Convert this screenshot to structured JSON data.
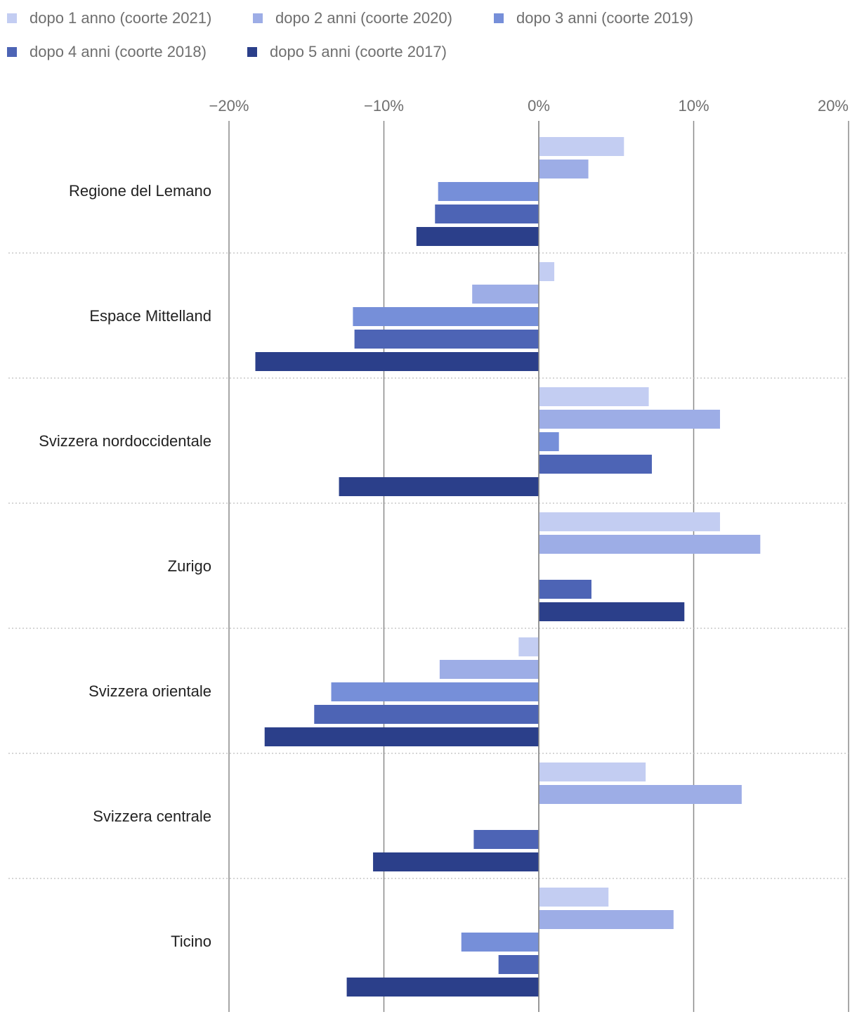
{
  "chart_data": {
    "type": "bar",
    "orientation": "horizontal",
    "title": "",
    "xlabel": "",
    "ylabel": "",
    "xlim": [
      -20,
      20
    ],
    "ticks": [
      -20,
      -10,
      0,
      10,
      20
    ],
    "tick_labels": [
      "−20%",
      "−10%",
      "0%",
      "10%",
      "20%"
    ],
    "legend_position": "top-left",
    "categories": [
      "Regione del Lemano",
      "Espace Mittelland",
      "Svizzera nordoccidentale",
      "Zurigo",
      "Svizzera orientale",
      "Svizzera centrale",
      "Ticino"
    ],
    "series": [
      {
        "name": "dopo 1 anno (coorte 2021)",
        "color": "#c3cdf2",
        "values": [
          5.5,
          1.0,
          7.1,
          11.7,
          -1.3,
          6.9,
          4.5
        ]
      },
      {
        "name": "dopo 2 anni (coorte 2020)",
        "color": "#9dade6",
        "values": [
          3.2,
          -4.3,
          11.7,
          14.3,
          -6.4,
          13.1,
          8.7
        ]
      },
      {
        "name": "dopo 3 anni (coorte 2019)",
        "color": "#768fd9",
        "values": [
          -6.5,
          -12.0,
          1.3,
          0,
          -13.4,
          0,
          -5.0
        ]
      },
      {
        "name": "dopo 4 anni (coorte 2018)",
        "color": "#4d64b5",
        "values": [
          -6.7,
          -11.9,
          7.3,
          3.4,
          -14.5,
          -4.2,
          -2.6
        ]
      },
      {
        "name": "dopo 5 anni (coorte 2017)",
        "color": "#2b3f8a",
        "values": [
          -7.9,
          -18.3,
          -12.9,
          9.4,
          -17.7,
          -10.7,
          -12.4
        ]
      }
    ]
  }
}
